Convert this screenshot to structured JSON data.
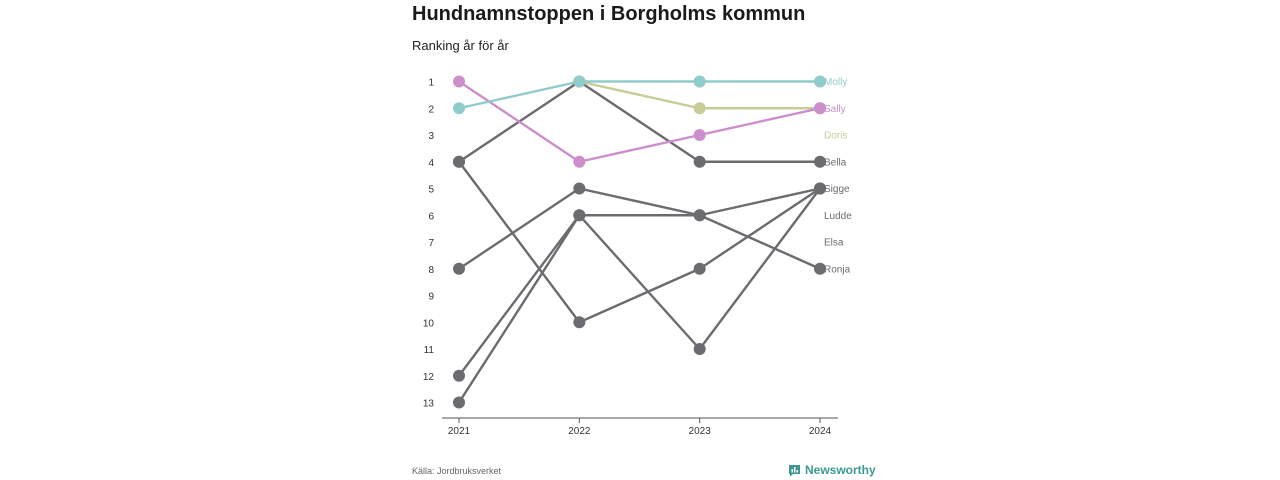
{
  "title": "Hundnamnstoppen i Borgholms kommun",
  "subtitle": "Ranking år för år",
  "source": "Källa: Jordbruksverket",
  "brand": {
    "name": "Newsworthy",
    "icon": "newsworthy-logo-icon",
    "color": "#3a9a8f"
  },
  "chart_data": {
    "type": "line",
    "subtype": "bump",
    "title": "Hundnamnstoppen i Borgholms kommun",
    "subtitle": "Ranking år för år",
    "x": [
      "2021",
      "2022",
      "2023",
      "2024"
    ],
    "y_ticks": [
      1,
      2,
      3,
      4,
      5,
      6,
      7,
      8,
      9,
      10,
      11,
      12,
      13
    ],
    "ylim": [
      1,
      13
    ],
    "y_reversed": true,
    "grid": false,
    "series": [
      {
        "name": "Bella",
        "values": [
          4,
          1,
          4,
          4
        ],
        "color": "#6b6b70"
      },
      {
        "name": "Sigge",
        "values": [
          8,
          5,
          6,
          5
        ],
        "color": "#6b6b70"
      },
      {
        "name": "Ludde",
        "values": [
          4,
          10,
          8,
          5
        ],
        "color": "#6b6b70"
      },
      {
        "name": "Elsa",
        "values": [
          12,
          6,
          11,
          5
        ],
        "color": "#6b6b70"
      },
      {
        "name": "Ronja",
        "values": [
          13,
          6,
          6,
          8
        ],
        "color": "#6b6b70"
      },
      {
        "name": "Doris",
        "values": [
          null,
          1,
          2,
          2
        ],
        "color": "#c8cc98"
      },
      {
        "name": "Sally",
        "values": [
          1,
          4,
          3,
          2
        ],
        "color": "#cc8fcc"
      },
      {
        "name": "Molly",
        "values": [
          2,
          1,
          1,
          1
        ],
        "color": "#90cccc"
      }
    ],
    "end_labels": [
      {
        "text": "Molly",
        "rank": 1,
        "color": "#90cccc"
      },
      {
        "text": "Sally",
        "rank": 2,
        "color": "#cc8fcc"
      },
      {
        "text": "Doris",
        "rank": 3,
        "color": "#c8cc98"
      },
      {
        "text": "Bella",
        "rank": 4,
        "color": "#6b6b70"
      },
      {
        "text": "Sigge",
        "rank": 5,
        "color": "#6b6b70"
      },
      {
        "text": "Ludde",
        "rank": 6,
        "color": "#6b6b70"
      },
      {
        "text": "Elsa",
        "rank": 7,
        "color": "#6b6b70"
      },
      {
        "text": "Ronja",
        "rank": 8,
        "color": "#6b6b70"
      }
    ]
  }
}
